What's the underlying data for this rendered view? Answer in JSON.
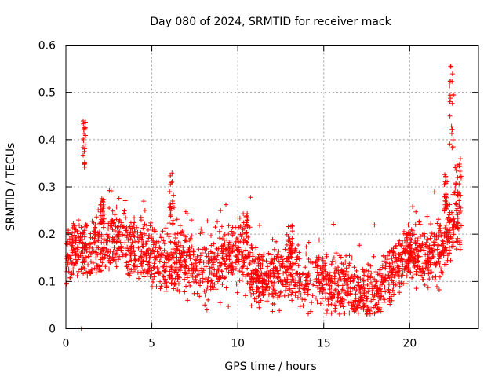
{
  "chart_data": {
    "type": "scatter",
    "title": "Day 080 of 2024, SRMTID for receiver mack",
    "xlabel": "GPS time / hours",
    "ylabel": "SRMTID / TECUs",
    "xlim": [
      0,
      24
    ],
    "ylim": [
      0,
      0.6
    ],
    "xticks": [
      0,
      5,
      10,
      15,
      20
    ],
    "yticks": [
      0,
      0.1,
      0.2,
      0.3,
      0.4,
      0.5,
      0.6
    ],
    "xtick_labels": [
      "0",
      "5",
      "10",
      "15",
      "20"
    ],
    "ytick_labels": [
      "0",
      "0.1",
      "0.2",
      "0.3",
      "0.4",
      "0.5",
      "0.6"
    ],
    "grid": true,
    "marker": "+",
    "series_color": "#ff0000",
    "trend": {
      "x": [
        0,
        1,
        2,
        3,
        4,
        5,
        6,
        7,
        8,
        9,
        10,
        10.5,
        11,
        12,
        13,
        14,
        15,
        16,
        17,
        17.5,
        18,
        19,
        19.5,
        20,
        21,
        22,
        22.5,
        23
      ],
      "y": [
        0.16,
        0.17,
        0.17,
        0.19,
        0.17,
        0.15,
        0.15,
        0.14,
        0.13,
        0.14,
        0.16,
        0.15,
        0.1,
        0.11,
        0.12,
        0.1,
        0.1,
        0.09,
        0.08,
        0.07,
        0.08,
        0.11,
        0.15,
        0.17,
        0.15,
        0.17,
        0.21,
        0.22
      ]
    },
    "spikes": [
      {
        "x": [
          1.0,
          1.15
        ],
        "y": [
          0.34,
          0.44
        ]
      },
      {
        "x": [
          2.0,
          2.2
        ],
        "y": [
          0.22,
          0.28
        ]
      },
      {
        "x": [
          6.0,
          6.3
        ],
        "y": [
          0.22,
          0.33
        ]
      },
      {
        "x": [
          10.3,
          10.6
        ],
        "y": [
          0.18,
          0.25
        ]
      },
      {
        "x": [
          12.9,
          13.2
        ],
        "y": [
          0.15,
          0.22
        ]
      },
      {
        "x": [
          22.0,
          22.2
        ],
        "y": [
          0.24,
          0.33
        ]
      },
      {
        "x": [
          22.3,
          22.55
        ],
        "y": [
          0.38,
          0.56
        ]
      },
      {
        "x": [
          22.6,
          23.0
        ],
        "y": [
          0.28,
          0.37
        ]
      }
    ],
    "outliers": [
      {
        "x": 0.9,
        "y": 0.0
      },
      {
        "x": 9.0,
        "y": 0.25
      },
      {
        "x": 15.6,
        "y": 0.15
      },
      {
        "x": 7.3,
        "y": 0.23
      }
    ]
  }
}
